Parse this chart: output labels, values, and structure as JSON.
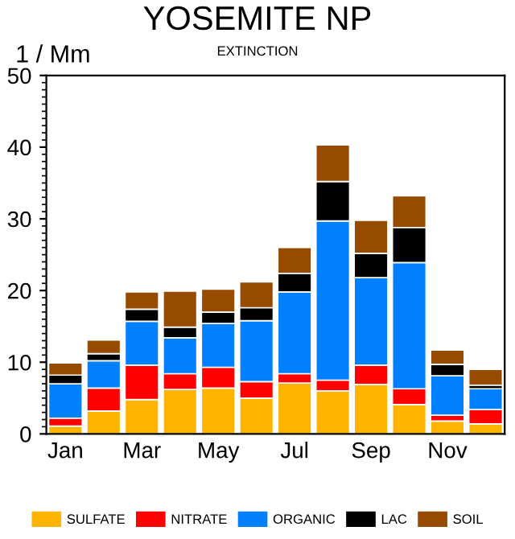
{
  "chart_data": {
    "type": "bar",
    "title": "YOSEMITE NP",
    "subtitle": "EXTINCTION",
    "ylabel": "1 / Mm",
    "categories": [
      "Jan",
      null,
      "Mar",
      null,
      "May",
      null,
      "Jul",
      null,
      "Sep",
      null,
      "Nov",
      null
    ],
    "stacked": true,
    "series": [
      {
        "name": "SULFATE",
        "color": "#ffb400",
        "values": [
          1.1,
          3.2,
          4.8,
          6.2,
          6.4,
          5.0,
          7.1,
          6.0,
          6.9,
          4.1,
          1.8,
          1.4
        ]
      },
      {
        "name": "NITRATE",
        "color": "#ff0000",
        "values": [
          1.1,
          3.2,
          4.8,
          2.2,
          2.9,
          2.3,
          1.3,
          1.5,
          2.7,
          2.2,
          0.8,
          2.0
        ]
      },
      {
        "name": "ORGANIC",
        "color": "#0080ff",
        "values": [
          4.8,
          3.8,
          6.1,
          5.0,
          6.1,
          8.5,
          11.4,
          22.2,
          12.2,
          17.6,
          5.5,
          2.9
        ]
      },
      {
        "name": "LAC",
        "color": "#000000",
        "values": [
          1.2,
          1.0,
          1.7,
          1.5,
          1.6,
          1.8,
          2.6,
          5.5,
          3.4,
          4.9,
          1.6,
          0.5
        ]
      },
      {
        "name": "SOIL",
        "color": "#964b00",
        "values": [
          1.7,
          1.9,
          2.4,
          5.0,
          3.2,
          3.6,
          3.6,
          5.1,
          4.6,
          4.4,
          2.0,
          2.2
        ]
      }
    ],
    "ylim": [
      0,
      50
    ],
    "yticks": [
      0,
      10,
      20,
      30,
      40,
      50
    ],
    "grid": false,
    "legend": "bottom"
  }
}
